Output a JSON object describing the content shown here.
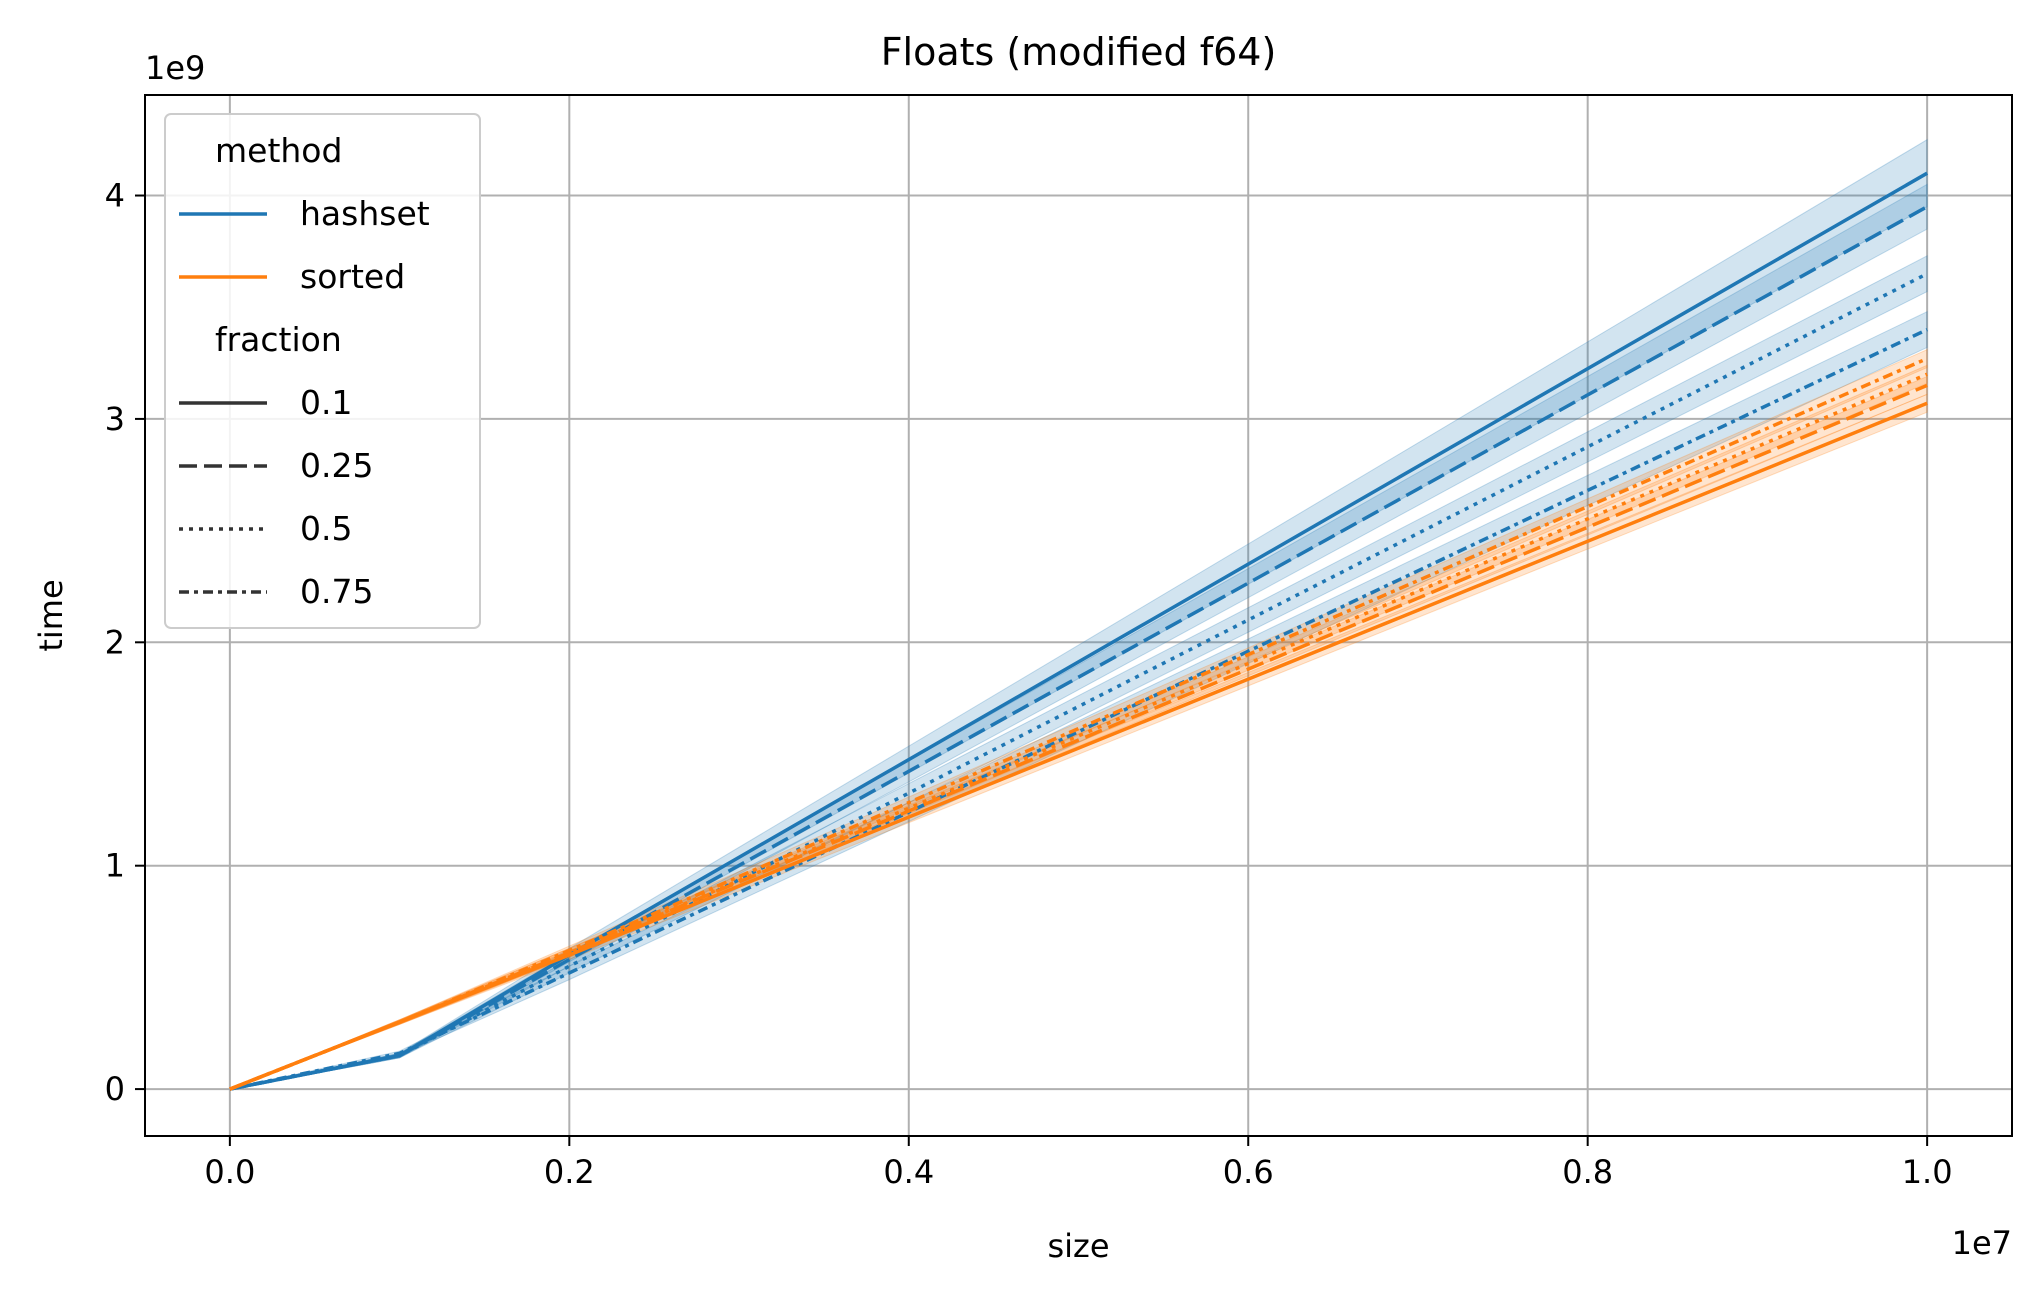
{
  "chart_data": {
    "type": "line",
    "title": "Floats (modified f64)",
    "xlabel": "size",
    "ylabel": "time",
    "x_offset_label": "1e7",
    "y_offset_label": "1e9",
    "x_scale": 10000000,
    "y_scale": 1000000000,
    "xlim": [
      -0.05,
      1.05
    ],
    "ylim": [
      -0.21,
      4.45
    ],
    "x_ticks": [
      0.0,
      0.2,
      0.4,
      0.6,
      0.8,
      1.0
    ],
    "x_tick_labels": [
      "0.0",
      "0.2",
      "0.4",
      "0.6",
      "0.8",
      "1.0"
    ],
    "y_ticks": [
      0,
      1,
      2,
      3,
      4
    ],
    "y_tick_labels": [
      "0",
      "1",
      "2",
      "3",
      "4"
    ],
    "grid": true,
    "legend_placement": "top-left",
    "colors": {
      "hashset": "#1f77b4",
      "sorted": "#ff7f0e",
      "style_key": "#333333",
      "grid": "#b0b0b0"
    },
    "x": [
      0.0,
      0.1,
      0.2,
      1.0
    ],
    "series": [
      {
        "method": "hashset",
        "fraction": "0.1",
        "values": [
          0.0,
          0.15,
          0.6,
          4.1
        ],
        "ci": [
          0.0,
          0.01,
          0.03,
          0.15
        ]
      },
      {
        "method": "hashset",
        "fraction": "0.25",
        "values": [
          0.0,
          0.15,
          0.58,
          3.95
        ],
        "ci": [
          0.0,
          0.01,
          0.03,
          0.1
        ]
      },
      {
        "method": "hashset",
        "fraction": "0.5",
        "values": [
          0.0,
          0.15,
          0.55,
          3.65
        ],
        "ci": [
          0.0,
          0.01,
          0.03,
          0.08
        ]
      },
      {
        "method": "hashset",
        "fraction": "0.75",
        "values": [
          0.0,
          0.16,
          0.52,
          3.4
        ],
        "ci": [
          0.0,
          0.01,
          0.03,
          0.08
        ]
      },
      {
        "method": "sorted",
        "fraction": "0.1",
        "values": [
          0.0,
          0.3,
          0.6,
          3.07
        ],
        "ci": [
          0.0,
          0.01,
          0.02,
          0.04
        ]
      },
      {
        "method": "sorted",
        "fraction": "0.25",
        "values": [
          0.0,
          0.3,
          0.61,
          3.15
        ],
        "ci": [
          0.0,
          0.01,
          0.02,
          0.04
        ]
      },
      {
        "method": "sorted",
        "fraction": "0.5",
        "values": [
          0.0,
          0.3,
          0.61,
          3.2
        ],
        "ci": [
          0.0,
          0.01,
          0.02,
          0.04
        ]
      },
      {
        "method": "sorted",
        "fraction": "0.75",
        "values": [
          0.0,
          0.3,
          0.62,
          3.27
        ],
        "ci": [
          0.0,
          0.01,
          0.02,
          0.04
        ]
      }
    ],
    "legend": {
      "groups": [
        {
          "title": "method",
          "entries": [
            {
              "label": "hashset",
              "color": "#1f77b4",
              "dash": "solid"
            },
            {
              "label": "sorted",
              "color": "#ff7f0e",
              "dash": "solid"
            }
          ]
        },
        {
          "title": "fraction",
          "entries": [
            {
              "label": "0.1",
              "color": "#333333",
              "dash": "solid"
            },
            {
              "label": "0.25",
              "color": "#333333",
              "dash": "dashed"
            },
            {
              "label": "0.5",
              "color": "#333333",
              "dash": "dotted"
            },
            {
              "label": "0.75",
              "color": "#333333",
              "dash": "dashdot"
            }
          ]
        }
      ]
    }
  }
}
